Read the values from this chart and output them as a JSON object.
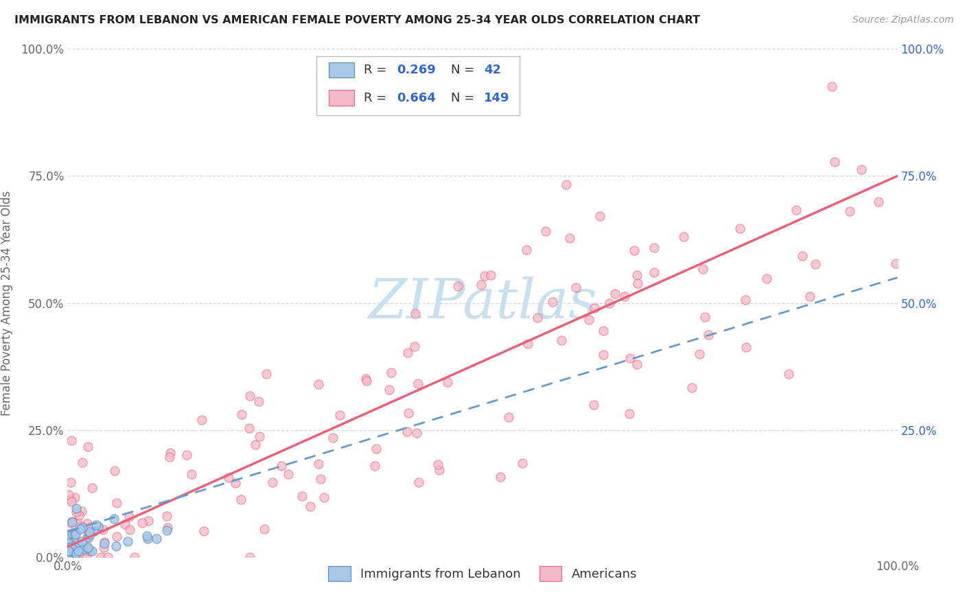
{
  "title": "IMMIGRANTS FROM LEBANON VS AMERICAN FEMALE POVERTY AMONG 25-34 YEAR OLDS CORRELATION CHART",
  "source": "Source: ZipAtlas.com",
  "ylabel": "Female Poverty Among 25-34 Year Olds",
  "legend_labels": [
    "Immigrants from Lebanon",
    "Americans"
  ],
  "R_lebanon": 0.269,
  "N_lebanon": 42,
  "R_americans": 0.664,
  "N_americans": 149,
  "background_color": "#ffffff",
  "grid_color": "#cccccc",
  "axis_label_color": "#666666",
  "r_value_color": "#3366cc",
  "watermark_color": "#c8dff0",
  "lebanon_dot_color": "#a8c8e8",
  "lebanon_dot_edge": "#5588bb",
  "americans_dot_color": "#f5b8c8",
  "americans_dot_edge": "#e8607a",
  "lebanon_line_color": "#6699cc",
  "americans_line_color": "#e8607a",
  "xlim": [
    0,
    1
  ],
  "ylim": [
    0,
    1
  ],
  "xtick_labels": [
    "0.0%",
    "100.0%"
  ],
  "left_ytick_labels": [
    "0.0%",
    "25.0%",
    "50.0%",
    "75.0%",
    "100.0%"
  ],
  "left_ytick_positions": [
    0,
    0.25,
    0.5,
    0.75,
    1.0
  ],
  "right_ytick_labels": [
    "100.0%",
    "75.0%",
    "50.0%",
    "25.0%"
  ],
  "right_ytick_positions": [
    1.0,
    0.75,
    0.5,
    0.25
  ],
  "amer_line_x0": 0.0,
  "amer_line_y0": 0.02,
  "amer_line_x1": 1.0,
  "amer_line_y1": 0.75,
  "leb_line_x0": 0.0,
  "leb_line_y0": 0.05,
  "leb_line_x1": 1.0,
  "leb_line_y1": 0.55
}
